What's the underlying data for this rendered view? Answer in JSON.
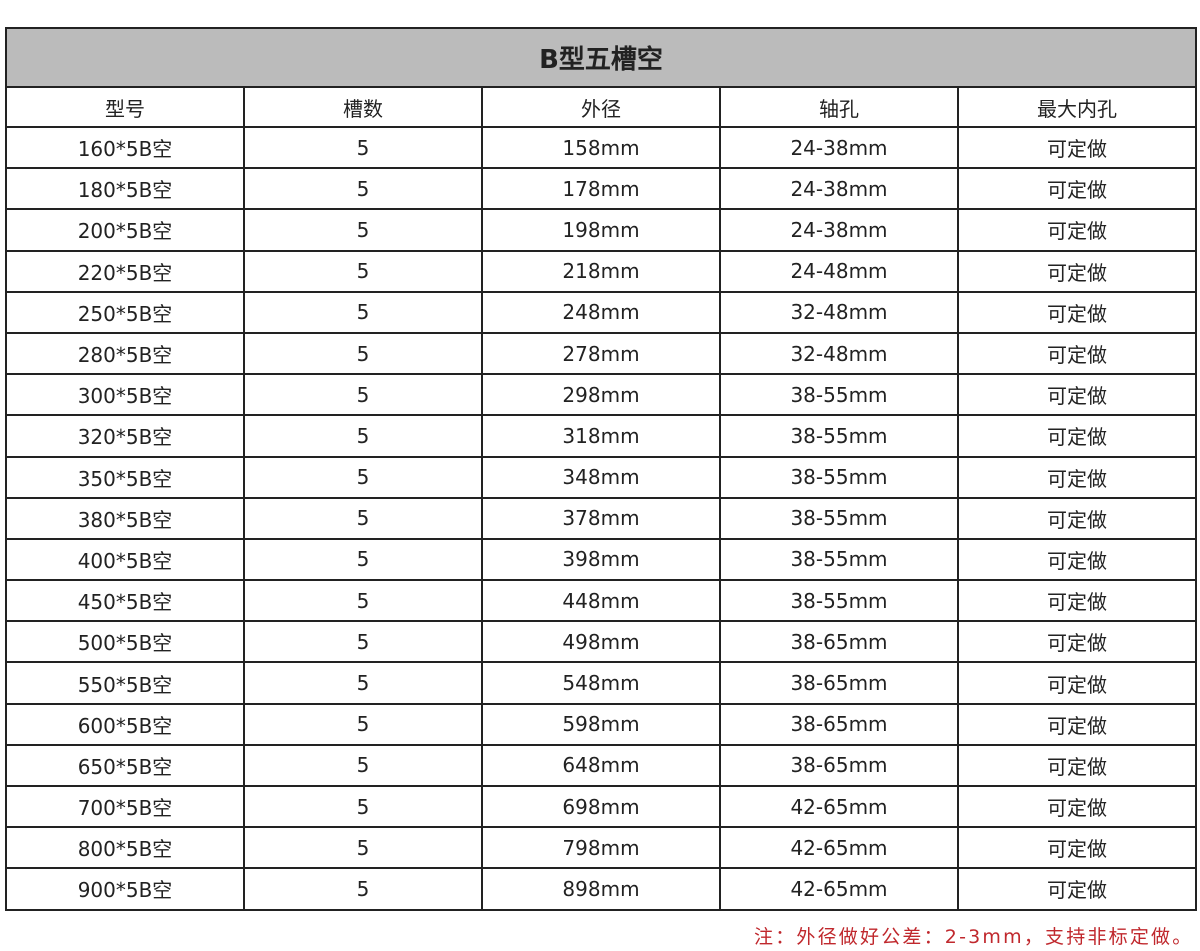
{
  "title": "B型五槽空",
  "columns": [
    "型号",
    "槽数",
    "外径",
    "轴孔",
    "最大内孔"
  ],
  "rows": [
    [
      "160*5B空",
      "5",
      "158mm",
      "24-38mm",
      "可定做"
    ],
    [
      "180*5B空",
      "5",
      "178mm",
      "24-38mm",
      "可定做"
    ],
    [
      "200*5B空",
      "5",
      "198mm",
      "24-38mm",
      "可定做"
    ],
    [
      "220*5B空",
      "5",
      "218mm",
      "24-48mm",
      "可定做"
    ],
    [
      "250*5B空",
      "5",
      "248mm",
      "32-48mm",
      "可定做"
    ],
    [
      "280*5B空",
      "5",
      "278mm",
      "32-48mm",
      "可定做"
    ],
    [
      "300*5B空",
      "5",
      "298mm",
      "38-55mm",
      "可定做"
    ],
    [
      "320*5B空",
      "5",
      "318mm",
      "38-55mm",
      "可定做"
    ],
    [
      "350*5B空",
      "5",
      "348mm",
      "38-55mm",
      "可定做"
    ],
    [
      "380*5B空",
      "5",
      "378mm",
      "38-55mm",
      "可定做"
    ],
    [
      "400*5B空",
      "5",
      "398mm",
      "38-55mm",
      "可定做"
    ],
    [
      "450*5B空",
      "5",
      "448mm",
      "38-55mm",
      "可定做"
    ],
    [
      "500*5B空",
      "5",
      "498mm",
      "38-65mm",
      "可定做"
    ],
    [
      "550*5B空",
      "5",
      "548mm",
      "38-65mm",
      "可定做"
    ],
    [
      "600*5B空",
      "5",
      "598mm",
      "38-65mm",
      "可定做"
    ],
    [
      "650*5B空",
      "5",
      "648mm",
      "38-65mm",
      "可定做"
    ],
    [
      "700*5B空",
      "5",
      "698mm",
      "42-65mm",
      "可定做"
    ],
    [
      "800*5B空",
      "5",
      "798mm",
      "42-65mm",
      "可定做"
    ],
    [
      "900*5B空",
      "5",
      "898mm",
      "42-65mm",
      "可定做"
    ]
  ],
  "note": "注：外径做好公差：2-3mm，支持非标定做。",
  "colors": {
    "title_bg": "#bbbbbb",
    "note": "#c0282d",
    "border": "#222222"
  }
}
